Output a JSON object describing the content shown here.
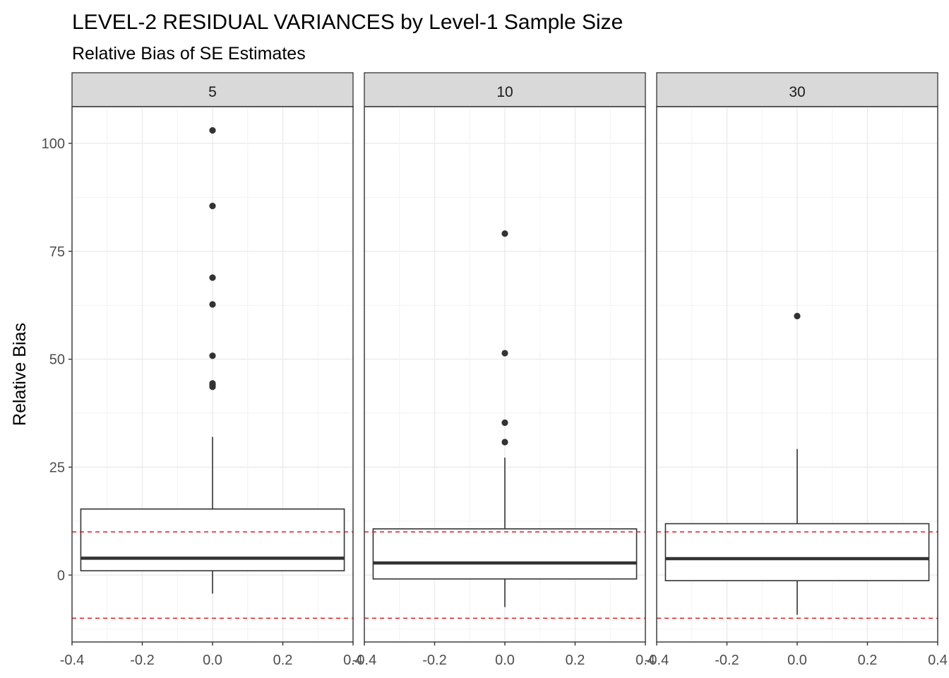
{
  "chart_data": {
    "type": "boxplot",
    "title": "LEVEL-2 RESIDUAL VARIANCES by Level-1 Sample Size",
    "subtitle": "Relative Bias of SE Estimates",
    "xlabel": "",
    "ylabel": "Relative Bias",
    "xlim": [
      -0.4,
      0.4
    ],
    "x_ticks": [
      "-0.4",
      "-0.2",
      "0.0",
      "0.2",
      "0.4"
    ],
    "ylim": [
      -15.5,
      108.5
    ],
    "y_ticks": [
      0,
      25,
      50,
      75,
      100
    ],
    "grid": true,
    "reference_lines": [
      10,
      -10
    ],
    "reference_line_color": "#e41a1c",
    "box_color": "#333333",
    "panel_strip_color": "#d9d9d9",
    "panels": [
      {
        "label": "5",
        "whisker_low": -4.3,
        "q1": 1.0,
        "median": 3.9,
        "q3": 15.3,
        "whisker_high": 32.0,
        "outliers": [
          103,
          85.5,
          68.9,
          62.7,
          50.8,
          44.4,
          44.1,
          43.6
        ]
      },
      {
        "label": "10",
        "whisker_low": -7.4,
        "q1": -0.9,
        "median": 2.8,
        "q3": 10.7,
        "whisker_high": 27.2,
        "outliers": [
          79.1,
          51.4,
          35.3,
          30.8
        ]
      },
      {
        "label": "30",
        "whisker_low": -9.2,
        "q1": -1.3,
        "median": 3.8,
        "q3": 11.9,
        "whisker_high": 29.2,
        "outliers": [
          60.0
        ]
      }
    ]
  }
}
